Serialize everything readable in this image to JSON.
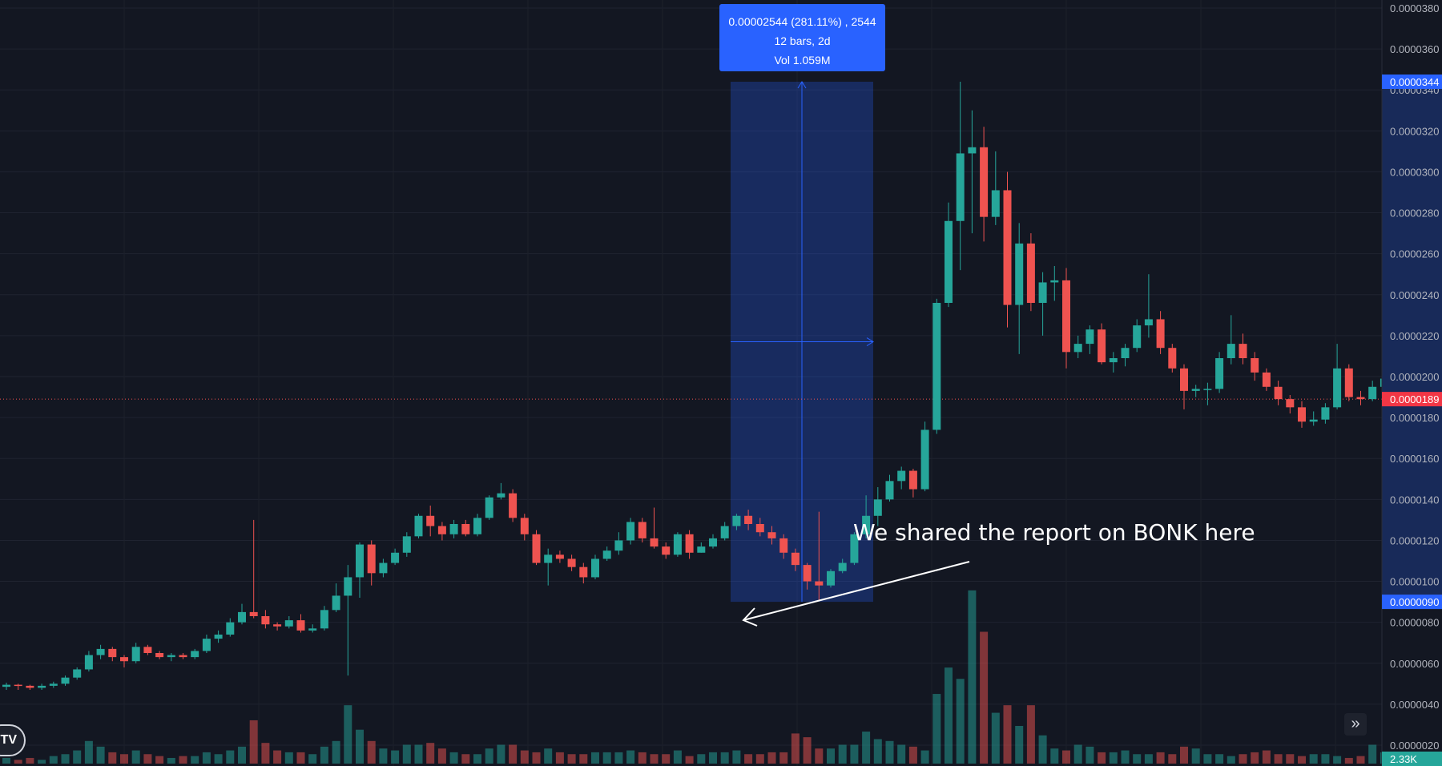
{
  "chart_data": {
    "type": "candlestick",
    "price_axis": {
      "range": [
        1.9e-06,
        3.83e-05
      ],
      "tick_labels": [
        "0.0000380",
        "0.0000360",
        "0.0000340",
        "0.0000320",
        "0.0000300",
        "0.0000280",
        "0.0000260",
        "0.0000240",
        "0.0000220",
        "0.0000200",
        "0.0000180",
        "0.0000160",
        "0.0000140",
        "0.0000120",
        "0.0000100",
        "0.0000080",
        "0.0000060",
        "0.0000040",
        "0.0000020"
      ],
      "tick_values": [
        3.8e-05,
        3.6e-05,
        3.4e-05,
        3.2e-05,
        3e-05,
        2.8e-05,
        2.6e-05,
        2.4e-05,
        2.2e-05,
        2e-05,
        1.8e-05,
        1.6e-05,
        1.4e-05,
        1.2e-05,
        1e-05,
        8e-06,
        6e-06,
        4e-06,
        2e-06
      ],
      "badges": [
        {
          "label": "0.0000344",
          "value": 3.44e-05,
          "color": "#2962ff"
        },
        {
          "label": "0.0000189",
          "value": 1.89e-05,
          "color": "#f23645"
        },
        {
          "label": "0.0000090",
          "value": 9e-06,
          "color": "#2962ff"
        }
      ]
    },
    "volume_label": "2.33K",
    "last_price": 1.89e-05,
    "candles": [
      [
        4.85e-06,
        4.95e-06,
        5.05e-06,
        4.7e-06
      ],
      [
        4.95e-06,
        4.9e-06,
        5e-06,
        4.7e-06
      ],
      [
        4.9e-06,
        4.8e-06,
        4.95e-06,
        4.7e-06
      ],
      [
        4.8e-06,
        4.9e-06,
        5e-06,
        4.7e-06
      ],
      [
        4.9e-06,
        5e-06,
        5.1e-06,
        4.8e-06
      ],
      [
        5e-06,
        5.3e-06,
        5.4e-06,
        4.9e-06
      ],
      [
        5.3e-06,
        5.7e-06,
        5.8e-06,
        5.2e-06
      ],
      [
        5.7e-06,
        6.4e-06,
        6.6e-06,
        5.6e-06
      ],
      [
        6.4e-06,
        6.7e-06,
        6.9e-06,
        6.2e-06
      ],
      [
        6.7e-06,
        6.3e-06,
        6.8e-06,
        6.1e-06
      ],
      [
        6.3e-06,
        6.1e-06,
        6.4e-06,
        5.8e-06
      ],
      [
        6.1e-06,
        6.8e-06,
        7e-06,
        6e-06
      ],
      [
        6.8e-06,
        6.5e-06,
        6.9e-06,
        6.4e-06
      ],
      [
        6.5e-06,
        6.3e-06,
        6.6e-06,
        6.2e-06
      ],
      [
        6.3e-06,
        6.4e-06,
        6.5e-06,
        6.1e-06
      ],
      [
        6.4e-06,
        6.3e-06,
        6.5e-06,
        6.2e-06
      ],
      [
        6.3e-06,
        6.6e-06,
        6.7e-06,
        6.2e-06
      ],
      [
        6.6e-06,
        7.2e-06,
        7.4e-06,
        6.5e-06
      ],
      [
        7.2e-06,
        7.4e-06,
        7.6e-06,
        7e-06
      ],
      [
        7.4e-06,
        8e-06,
        8.2e-06,
        7.3e-06
      ],
      [
        8e-06,
        8.5e-06,
        8.9e-06,
        7.9e-06
      ],
      [
        8.5e-06,
        8.3e-06,
        1.3e-05,
        8.2e-06
      ],
      [
        8.3e-06,
        7.9e-06,
        8.6e-06,
        7.7e-06
      ],
      [
        7.9e-06,
        7.8e-06,
        8e-06,
        7.6e-06
      ],
      [
        7.8e-06,
        8.1e-06,
        8.3e-06,
        7.7e-06
      ],
      [
        8.1e-06,
        7.6e-06,
        8.4e-06,
        7.5e-06
      ],
      [
        7.6e-06,
        7.7e-06,
        7.9e-06,
        7.5e-06
      ],
      [
        7.7e-06,
        8.6e-06,
        8.8e-06,
        7.6e-06
      ],
      [
        8.6e-06,
        9.3e-06,
        9.9e-06,
        8.5e-06
      ],
      [
        9.3e-06,
        1.02e-05,
        1.08e-05,
        5.4e-06
      ],
      [
        1.02e-05,
        1.18e-05,
        1.19e-05,
        9.2e-06
      ],
      [
        1.18e-05,
        1.04e-05,
        1.2e-05,
        9.8e-06
      ],
      [
        1.04e-05,
        1.09e-05,
        1.11e-05,
        1.02e-05
      ],
      [
        1.09e-05,
        1.14e-05,
        1.16e-05,
        1.08e-05
      ],
      [
        1.14e-05,
        1.22e-05,
        1.24e-05,
        1.12e-05
      ],
      [
        1.22e-05,
        1.32e-05,
        1.33e-05,
        1.21e-05
      ],
      [
        1.32e-05,
        1.27e-05,
        1.37e-05,
        1.22e-05
      ],
      [
        1.27e-05,
        1.23e-05,
        1.29e-05,
        1.2e-05
      ],
      [
        1.23e-05,
        1.28e-05,
        1.3e-05,
        1.21e-05
      ],
      [
        1.28e-05,
        1.23e-05,
        1.3e-05,
        1.22e-05
      ],
      [
        1.23e-05,
        1.31e-05,
        1.33e-05,
        1.22e-05
      ],
      [
        1.31e-05,
        1.41e-05,
        1.42e-05,
        1.3e-05
      ],
      [
        1.41e-05,
        1.43e-05,
        1.48e-05,
        1.4e-05
      ],
      [
        1.43e-05,
        1.31e-05,
        1.45e-05,
        1.29e-05
      ],
      [
        1.31e-05,
        1.23e-05,
        1.33e-05,
        1.2e-05
      ],
      [
        1.23e-05,
        1.09e-05,
        1.25e-05,
        1.08e-05
      ],
      [
        1.09e-05,
        1.13e-05,
        1.16e-05,
        9.8e-06
      ],
      [
        1.13e-05,
        1.11e-05,
        1.15e-05,
        1.09e-05
      ],
      [
        1.11e-05,
        1.07e-05,
        1.13e-05,
        1.05e-05
      ],
      [
        1.07e-05,
        1.02e-05,
        1.09e-05,
        9.9e-06
      ],
      [
        1.02e-05,
        1.11e-05,
        1.13e-05,
        1.01e-05
      ],
      [
        1.11e-05,
        1.15e-05,
        1.17e-05,
        1.1e-05
      ],
      [
        1.15e-05,
        1.2e-05,
        1.24e-05,
        1.13e-05
      ],
      [
        1.2e-05,
        1.29e-05,
        1.31e-05,
        1.18e-05
      ],
      [
        1.29e-05,
        1.21e-05,
        1.31e-05,
        1.19e-05
      ],
      [
        1.21e-05,
        1.17e-05,
        1.36e-05,
        1.16e-05
      ],
      [
        1.17e-05,
        1.13e-05,
        1.19e-05,
        1.11e-05
      ],
      [
        1.13e-05,
        1.23e-05,
        1.24e-05,
        1.12e-05
      ],
      [
        1.23e-05,
        1.14e-05,
        1.25e-05,
        1.11e-05
      ],
      [
        1.14e-05,
        1.17e-05,
        1.19e-05,
        1.14e-05
      ],
      [
        1.17e-05,
        1.21e-05,
        1.23e-05,
        1.16e-05
      ],
      [
        1.21e-05,
        1.27e-05,
        1.29e-05,
        1.2e-05
      ],
      [
        1.27e-05,
        1.32e-05,
        1.33e-05,
        1.25e-05
      ],
      [
        1.32e-05,
        1.28e-05,
        1.35e-05,
        1.25e-05
      ],
      [
        1.28e-05,
        1.24e-05,
        1.31e-05,
        1.22e-05
      ],
      [
        1.24e-05,
        1.21e-05,
        1.27e-05,
        1.18e-05
      ],
      [
        1.21e-05,
        1.14e-05,
        1.23e-05,
        1.11e-05
      ],
      [
        1.14e-05,
        1.08e-05,
        1.16e-05,
        1.05e-05
      ],
      [
        1.08e-05,
        1e-05,
        1.09e-05,
        9.6e-06
      ],
      [
        1e-05,
        9.8e-06,
        1.34e-05,
        9.1e-06
      ],
      [
        9.8e-06,
        1.05e-05,
        1.06e-05,
        9.7e-06
      ],
      [
        1.05e-05,
        1.09e-05,
        1.11e-05,
        1.04e-05
      ],
      [
        1.09e-05,
        1.23e-05,
        1.24e-05,
        1.08e-05
      ],
      [
        1.23e-05,
        1.32e-05,
        1.42e-05,
        1.21e-05
      ],
      [
        1.32e-05,
        1.4e-05,
        1.46e-05,
        1.27e-05
      ],
      [
        1.4e-05,
        1.49e-05,
        1.52e-05,
        1.39e-05
      ],
      [
        1.49e-05,
        1.54e-05,
        1.56e-05,
        1.45e-05
      ],
      [
        1.54e-05,
        1.45e-05,
        1.55e-05,
        1.41e-05
      ],
      [
        1.45e-05,
        1.74e-05,
        1.78e-05,
        1.44e-05
      ],
      [
        1.74e-05,
        2.36e-05,
        2.38e-05,
        1.72e-05
      ],
      [
        2.36e-05,
        2.76e-05,
        2.85e-05,
        2.34e-05
      ],
      [
        2.76e-05,
        3.09e-05,
        3.44e-05,
        2.52e-05
      ],
      [
        3.09e-05,
        3.12e-05,
        3.3e-05,
        2.7e-05
      ],
      [
        3.12e-05,
        2.78e-05,
        3.22e-05,
        2.66e-05
      ],
      [
        2.78e-05,
        2.91e-05,
        3.1e-05,
        2.74e-05
      ],
      [
        2.91e-05,
        2.35e-05,
        3e-05,
        2.24e-05
      ],
      [
        2.35e-05,
        2.65e-05,
        2.75e-05,
        2.11e-05
      ],
      [
        2.65e-05,
        2.36e-05,
        2.7e-05,
        2.32e-05
      ],
      [
        2.36e-05,
        2.46e-05,
        2.51e-05,
        2.2e-05
      ],
      [
        2.46e-05,
        2.47e-05,
        2.54e-05,
        2.37e-05
      ],
      [
        2.47e-05,
        2.12e-05,
        2.53e-05,
        2.04e-05
      ],
      [
        2.12e-05,
        2.16e-05,
        2.2e-05,
        2.09e-05
      ],
      [
        2.16e-05,
        2.23e-05,
        2.25e-05,
        2.11e-05
      ],
      [
        2.23e-05,
        2.07e-05,
        2.26e-05,
        2.06e-05
      ],
      [
        2.07e-05,
        2.09e-05,
        2.12e-05,
        2.02e-05
      ],
      [
        2.09e-05,
        2.14e-05,
        2.16e-05,
        2.05e-05
      ],
      [
        2.14e-05,
        2.25e-05,
        2.28e-05,
        2.12e-05
      ],
      [
        2.25e-05,
        2.28e-05,
        2.5e-05,
        2.19e-05
      ],
      [
        2.28e-05,
        2.14e-05,
        2.32e-05,
        2.11e-05
      ],
      [
        2.14e-05,
        2.04e-05,
        2.16e-05,
        2.02e-05
      ],
      [
        2.04e-05,
        1.93e-05,
        2.06e-05,
        1.84e-05
      ],
      [
        1.93e-05,
        1.94e-05,
        1.96e-05,
        1.9e-05
      ],
      [
        1.94e-05,
        1.94e-05,
        1.97e-05,
        1.86e-05
      ],
      [
        1.94e-05,
        2.09e-05,
        2.12e-05,
        1.92e-05
      ],
      [
        2.09e-05,
        2.16e-05,
        2.3e-05,
        2.06e-05
      ],
      [
        2.16e-05,
        2.09e-05,
        2.21e-05,
        2.06e-05
      ],
      [
        2.09e-05,
        2.02e-05,
        2.12e-05,
        1.98e-05
      ],
      [
        2.02e-05,
        1.95e-05,
        2.04e-05,
        1.93e-05
      ],
      [
        1.95e-05,
        1.89e-05,
        1.98e-05,
        1.86e-05
      ],
      [
        1.89e-05,
        1.85e-05,
        1.91e-05,
        1.82e-05
      ],
      [
        1.85e-05,
        1.78e-05,
        1.88e-05,
        1.75e-05
      ],
      [
        1.78e-05,
        1.79e-05,
        1.83e-05,
        1.76e-05
      ],
      [
        1.79e-05,
        1.85e-05,
        1.87e-05,
        1.77e-05
      ],
      [
        1.85e-05,
        2.04e-05,
        2.16e-05,
        1.84e-05
      ],
      [
        2.04e-05,
        1.9e-05,
        2.06e-05,
        1.88e-05
      ],
      [
        1.9e-05,
        1.89e-05,
        1.93e-05,
        1.86e-05
      ],
      [
        1.89e-05,
        1.95e-05,
        1.98e-05,
        1.88e-05
      ],
      [
        1.95e-05,
        1.99e-05,
        2.04e-05,
        1.93e-05
      ],
      [
        1.99e-05,
        1.91e-05,
        2.01e-05,
        1.88e-05
      ],
      [
        1.91e-05,
        1.88e-05,
        1.93e-05,
        1.76e-05
      ],
      [
        1.88e-05,
        1.9e-05,
        1.95e-05,
        1.87e-05
      ],
      [
        1.9e-05,
        2.07e-05,
        2.2e-05,
        1.62e-05
      ],
      [
        2.07e-05,
        2.07e-05,
        2.34e-05,
        1.94e-05
      ],
      [
        2.07e-05,
        1.89e-05,
        2.09e-05,
        1.86e-05
      ]
    ],
    "volume_norm": [
      0.03,
      0.02,
      0.03,
      0.02,
      0.04,
      0.05,
      0.07,
      0.12,
      0.09,
      0.06,
      0.05,
      0.07,
      0.05,
      0.04,
      0.03,
      0.04,
      0.04,
      0.06,
      0.05,
      0.07,
      0.09,
      0.23,
      0.11,
      0.07,
      0.06,
      0.06,
      0.05,
      0.09,
      0.12,
      0.31,
      0.18,
      0.12,
      0.08,
      0.07,
      0.1,
      0.1,
      0.11,
      0.08,
      0.06,
      0.05,
      0.05,
      0.08,
      0.1,
      0.1,
      0.07,
      0.06,
      0.08,
      0.06,
      0.05,
      0.05,
      0.06,
      0.06,
      0.06,
      0.07,
      0.06,
      0.05,
      0.05,
      0.07,
      0.04,
      0.05,
      0.06,
      0.06,
      0.07,
      0.05,
      0.05,
      0.06,
      0.06,
      0.16,
      0.14,
      0.08,
      0.08,
      0.1,
      0.1,
      0.17,
      0.13,
      0.12,
      0.1,
      0.09,
      0.07,
      0.37,
      0.51,
      0.45,
      0.92,
      0.7,
      0.27,
      0.31,
      0.2,
      0.31,
      0.15,
      0.08,
      0.07,
      0.1,
      0.09,
      0.06,
      0.06,
      0.07,
      0.05,
      0.05,
      0.06,
      0.05,
      0.09,
      0.08,
      0.05,
      0.05,
      0.04,
      0.05,
      0.06,
      0.07,
      0.05,
      0.05,
      0.04,
      0.05,
      0.05,
      0.04,
      0.03,
      0.04,
      0.1,
      0.06,
      0.05,
      0.04,
      0.05,
      0.04,
      0.04,
      0.05,
      0.11,
      0.09,
      0.06
    ],
    "measure": {
      "from": 9e-06,
      "to": 3.44e-05,
      "line1": "0.00002544 (281.11%) , 2544",
      "line2": "12 bars, 2d",
      "line3": "Vol 1.059M"
    },
    "annotation": "We shared the report on BONK here",
    "colors": {
      "up": "#26a69a",
      "down": "#ef5350",
      "background": "#131722",
      "measure": "#2962ff"
    }
  }
}
